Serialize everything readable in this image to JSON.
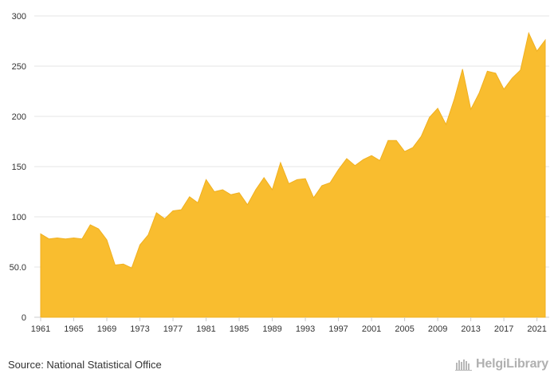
{
  "chart_data": {
    "type": "area",
    "color": "#f9bd2f",
    "x": [
      1961,
      1962,
      1963,
      1964,
      1965,
      1966,
      1967,
      1968,
      1969,
      1970,
      1971,
      1972,
      1973,
      1974,
      1975,
      1976,
      1977,
      1978,
      1979,
      1980,
      1981,
      1982,
      1983,
      1984,
      1985,
      1986,
      1987,
      1988,
      1989,
      1990,
      1991,
      1992,
      1993,
      1994,
      1995,
      1996,
      1997,
      1998,
      1999,
      2000,
      2001,
      2002,
      2003,
      2004,
      2005,
      2006,
      2007,
      2008,
      2009,
      2010,
      2011,
      2012,
      2013,
      2014,
      2015,
      2016,
      2017,
      2018,
      2019,
      2020,
      2021,
      2022
    ],
    "values": [
      83,
      78,
      79,
      78,
      79,
      78,
      92,
      88,
      77,
      52,
      53,
      49,
      72,
      82,
      104,
      98,
      106,
      107,
      120,
      114,
      137,
      125,
      127,
      122,
      124,
      112,
      127,
      139,
      127,
      154,
      133,
      137,
      138,
      119,
      131,
      134,
      147,
      158,
      151,
      157,
      161,
      156,
      176,
      176,
      165,
      169,
      180,
      199,
      208,
      192,
      217,
      247,
      207,
      223,
      245,
      243,
      227,
      238,
      246,
      283,
      265,
      276
    ],
    "xticks": [
      "1961",
      "1965",
      "1969",
      "1973",
      "1977",
      "1981",
      "1985",
      "1989",
      "1993",
      "1997",
      "2001",
      "2005",
      "2009",
      "2013",
      "2017",
      "2021"
    ],
    "yticks": [
      "0",
      "50.0",
      "100",
      "150",
      "200",
      "250",
      "300"
    ],
    "ylim": [
      0,
      300
    ],
    "grid": true
  },
  "footer": {
    "source": "Source: National Statistical Office",
    "brand": "HelgiLibrary"
  }
}
